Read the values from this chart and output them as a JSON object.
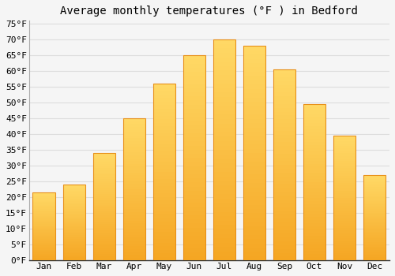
{
  "title": "Average monthly temperatures (°F ) in Bedford",
  "months": [
    "Jan",
    "Feb",
    "Mar",
    "Apr",
    "May",
    "Jun",
    "Jul",
    "Aug",
    "Sep",
    "Oct",
    "Nov",
    "Dec"
  ],
  "values": [
    21.5,
    24.0,
    34.0,
    45.0,
    56.0,
    65.0,
    70.0,
    68.0,
    60.5,
    49.5,
    39.5,
    27.0
  ],
  "bar_color_bottom": "#F5A623",
  "bar_color_top": "#FFD966",
  "bar_color_mid": "#FFC125",
  "background_color": "#f5f5f5",
  "grid_color": "#dddddd",
  "ytick_min": 0,
  "ytick_max": 75,
  "ytick_step": 5,
  "title_fontsize": 10,
  "tick_fontsize": 8,
  "font_family": "monospace"
}
